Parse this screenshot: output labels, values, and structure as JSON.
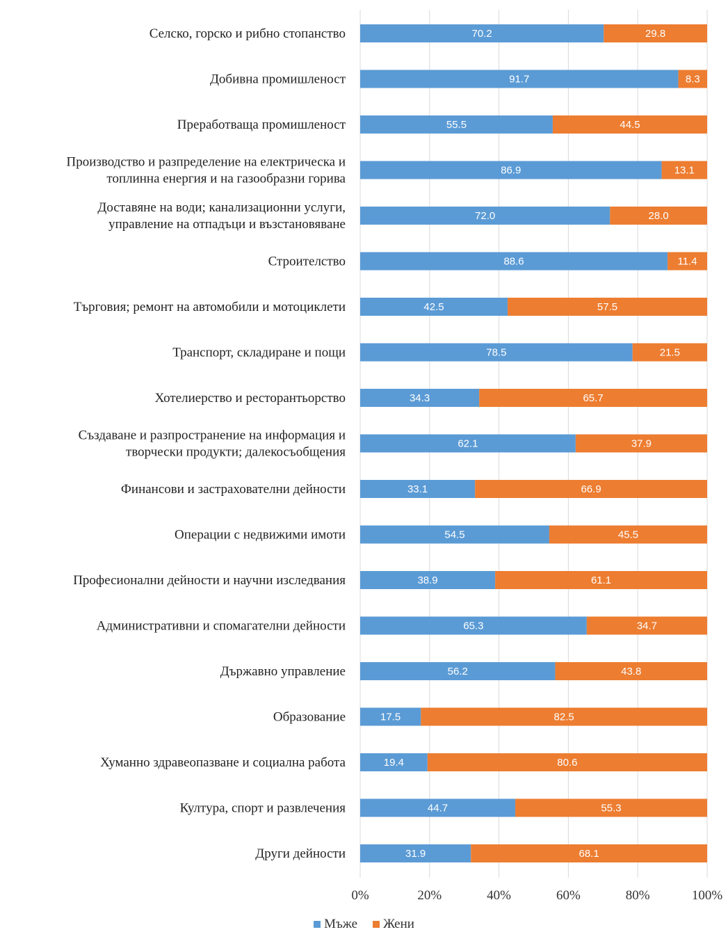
{
  "chart_data": {
    "type": "bar",
    "orientation": "horizontal",
    "stacked": true,
    "percent_stacked": true,
    "categories": [
      [
        "Селско, горско и рибно стопанство"
      ],
      [
        "Добивна промишленост"
      ],
      [
        "Преработваща промишленост"
      ],
      [
        "Производство и разпределение на електрическа и",
        "топлинна енергия и на газообразни горива"
      ],
      [
        "Доставяне на води; канализационни услуги,",
        "управление на отпадъци и възстановяване"
      ],
      [
        "Строителство"
      ],
      [
        "Търговия; ремонт на автомобили и мотоциклети"
      ],
      [
        "Транспорт, складиране и пощи"
      ],
      [
        "Хотелиерство и ресторантьорство"
      ],
      [
        "Създаване и разпространение на информация и",
        "творчески продукти; далекосъобщения"
      ],
      [
        "Финансови и застрахователни дейности"
      ],
      [
        "Операции с недвижими имоти"
      ],
      [
        "Професионални дейности и научни изследвания"
      ],
      [
        "Административни и спомагателни дейности"
      ],
      [
        "Държавно управление"
      ],
      [
        "Образование"
      ],
      [
        "Хуманно здравеопазване и социална работа"
      ],
      [
        "Култура, спорт и развлечения"
      ],
      [
        "Други дейности"
      ]
    ],
    "series": [
      {
        "name": "Мъже",
        "color": "#5b9bd5",
        "values": [
          70.2,
          91.7,
          55.5,
          86.9,
          72.0,
          88.6,
          42.5,
          78.5,
          34.3,
          62.1,
          33.1,
          54.5,
          38.9,
          65.3,
          56.2,
          17.5,
          19.4,
          44.7,
          31.9
        ],
        "labels": [
          "70.2",
          "91.7",
          "55.5",
          "86.9",
          "72.0",
          "88.6",
          "42.5",
          "78.5",
          "34.3",
          "62.1",
          "33.1",
          "54.5",
          "38.9",
          "65.3",
          "56.2",
          "17.5",
          "19.4",
          "44.7",
          "31.9"
        ]
      },
      {
        "name": "Жени",
        "color": "#ed7d31",
        "values": [
          29.8,
          8.3,
          44.5,
          13.1,
          28.0,
          11.4,
          57.5,
          21.5,
          65.7,
          37.9,
          66.9,
          45.5,
          61.1,
          34.7,
          43.8,
          82.5,
          80.6,
          55.3,
          68.1
        ],
        "labels": [
          "29.8",
          "8.3",
          "44.5",
          "13.1",
          "28.0",
          "11.4",
          "57.5",
          "21.5",
          "65.7",
          "37.9",
          "66.9",
          "45.5",
          "61.1",
          "34.7",
          "43.8",
          "82.5",
          "80.6",
          "55.3",
          "68.1"
        ]
      }
    ],
    "x_ticks": [
      "0%",
      "20%",
      "40%",
      "60%",
      "80%",
      "100%"
    ],
    "xlim": [
      0,
      100
    ],
    "grid": "vertical",
    "legend_position": "bottom"
  }
}
